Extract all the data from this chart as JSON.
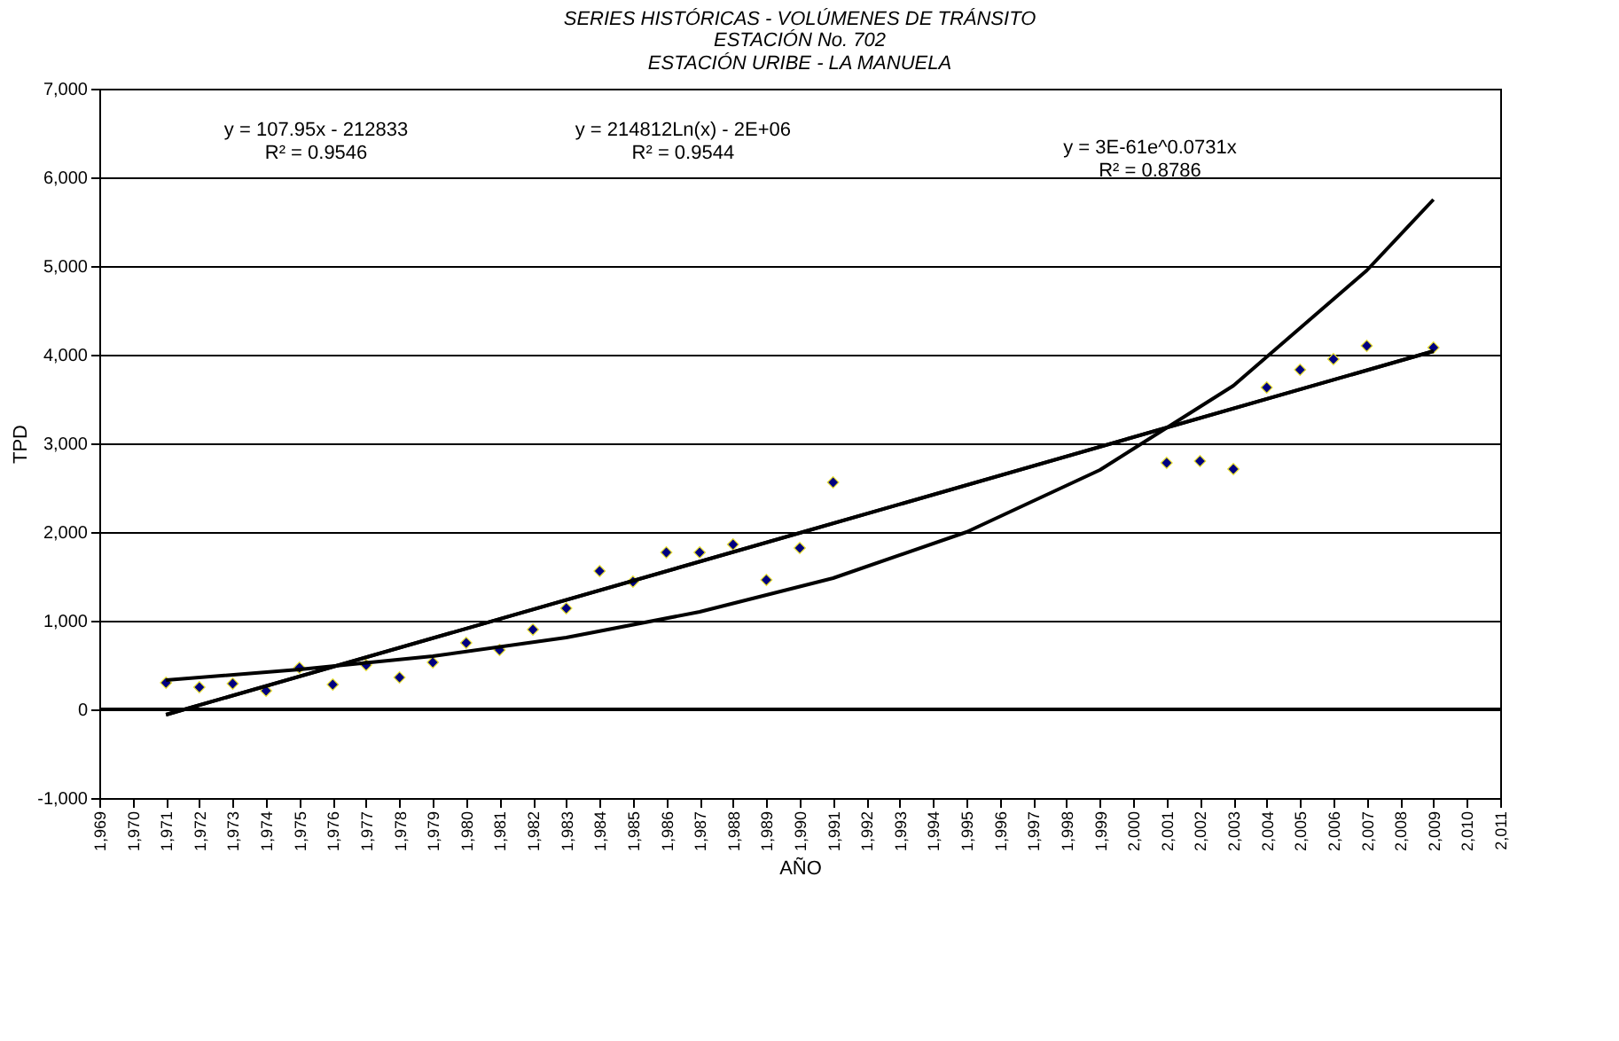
{
  "chart_data": {
    "type": "scatter",
    "title": "SERIES HISTÓRICAS - VOLÚMENES DE TRÁNSITO",
    "subtitle": "ESTACIÓN No. 702\nESTACIÓN URIBE - LA MANUELA",
    "xlabel": "AÑO",
    "ylabel": "TPD",
    "annotations": [
      "y = 107.95x - 212833\nR² = 0.9546",
      "y = 214812Ln(x) - 2E+06\nR² = 0.9544",
      "y = 3E-61e^0.0731x\nR² = 0.8786"
    ],
    "marker": "diamond",
    "grid": "y",
    "xlim": [
      1969,
      2011
    ],
    "ylim": [
      -1000,
      7000
    ],
    "xticks": [
      {
        "value": 1969,
        "label": "1,969"
      },
      {
        "value": 1970,
        "label": "1,970"
      },
      {
        "value": 1971,
        "label": "1,971"
      },
      {
        "value": 1972,
        "label": "1,972"
      },
      {
        "value": 1973,
        "label": "1,973"
      },
      {
        "value": 1974,
        "label": "1,974"
      },
      {
        "value": 1975,
        "label": "1,975"
      },
      {
        "value": 1976,
        "label": "1,976"
      },
      {
        "value": 1977,
        "label": "1,977"
      },
      {
        "value": 1978,
        "label": "1,978"
      },
      {
        "value": 1979,
        "label": "1,979"
      },
      {
        "value": 1980,
        "label": "1,980"
      },
      {
        "value": 1981,
        "label": "1,981"
      },
      {
        "value": 1982,
        "label": "1,982"
      },
      {
        "value": 1983,
        "label": "1,983"
      },
      {
        "value": 1984,
        "label": "1,984"
      },
      {
        "value": 1985,
        "label": "1,985"
      },
      {
        "value": 1986,
        "label": "1,986"
      },
      {
        "value": 1987,
        "label": "1,987"
      },
      {
        "value": 1988,
        "label": "1,988"
      },
      {
        "value": 1989,
        "label": "1,989"
      },
      {
        "value": 1990,
        "label": "1,990"
      },
      {
        "value": 1991,
        "label": "1,991"
      },
      {
        "value": 1992,
        "label": "1,992"
      },
      {
        "value": 1993,
        "label": "1,993"
      },
      {
        "value": 1994,
        "label": "1,994"
      },
      {
        "value": 1995,
        "label": "1,995"
      },
      {
        "value": 1996,
        "label": "1,996"
      },
      {
        "value": 1997,
        "label": "1,997"
      },
      {
        "value": 1998,
        "label": "1,998"
      },
      {
        "value": 1999,
        "label": "1,999"
      },
      {
        "value": 2000,
        "label": "2,000"
      },
      {
        "value": 2001,
        "label": "2,001"
      },
      {
        "value": 2002,
        "label": "2,002"
      },
      {
        "value": 2003,
        "label": "2,003"
      },
      {
        "value": 2004,
        "label": "2,004"
      },
      {
        "value": 2005,
        "label": "2,005"
      },
      {
        "value": 2006,
        "label": "2,006"
      },
      {
        "value": 2007,
        "label": "2,007"
      },
      {
        "value": 2008,
        "label": "2,008"
      },
      {
        "value": 2009,
        "label": "2,009"
      },
      {
        "value": 2010,
        "label": "2,010"
      },
      {
        "value": 2011,
        "label": "2,011"
      }
    ],
    "yticks": [
      {
        "value": -1000,
        "label": "-1,000"
      },
      0,
      {
        "value": 1000,
        "label": "1,000"
      },
      {
        "value": 2000,
        "label": "2,000"
      },
      {
        "value": 3000,
        "label": "3,000"
      },
      {
        "value": 4000,
        "label": "4,000"
      },
      {
        "value": 5000,
        "label": "5,000"
      },
      {
        "value": 6000,
        "label": "6,000"
      },
      {
        "value": 7000,
        "label": "7,000"
      }
    ],
    "series": [
      {
        "color": "#000080",
        "x": [
          1971,
          1972,
          1973,
          1974,
          1975,
          1976,
          1977,
          1978,
          1979,
          1980,
          1981,
          1982,
          1983,
          1984,
          1985,
          1986,
          1987,
          1988,
          1989,
          1990,
          1991,
          2001,
          2002,
          2003,
          2004,
          2005,
          2006,
          2007,
          2009
        ],
        "values": [
          300,
          250,
          290,
          210,
          470,
          280,
          500,
          360,
          530,
          750,
          670,
          900,
          1140,
          1560,
          1440,
          1770,
          1770,
          1860,
          1460,
          1820,
          2560,
          2780,
          2800,
          2710,
          3630,
          3830,
          3950,
          4100,
          4080
        ]
      },
      {
        "type": "line",
        "color": "#000000",
        "marker": "none",
        "x": [
          1971,
          2009
        ],
        "values": [
          -60,
          4040
        ]
      },
      {
        "type": "line",
        "color": "#000000",
        "marker": "none",
        "x": [
          1971,
          1990,
          2009
        ],
        "values": [
          -60,
          1990,
          4040
        ]
      },
      {
        "type": "line",
        "color": "#000000",
        "marker": "none",
        "x": [
          1971,
          1975,
          1979,
          1983,
          1987,
          1991,
          1995,
          1999,
          2003,
          2007,
          2009
        ],
        "values": [
          330,
          450,
          600,
          810,
          1100,
          1480,
          2000,
          2700,
          3650,
          4950,
          5750
        ]
      }
    ]
  }
}
